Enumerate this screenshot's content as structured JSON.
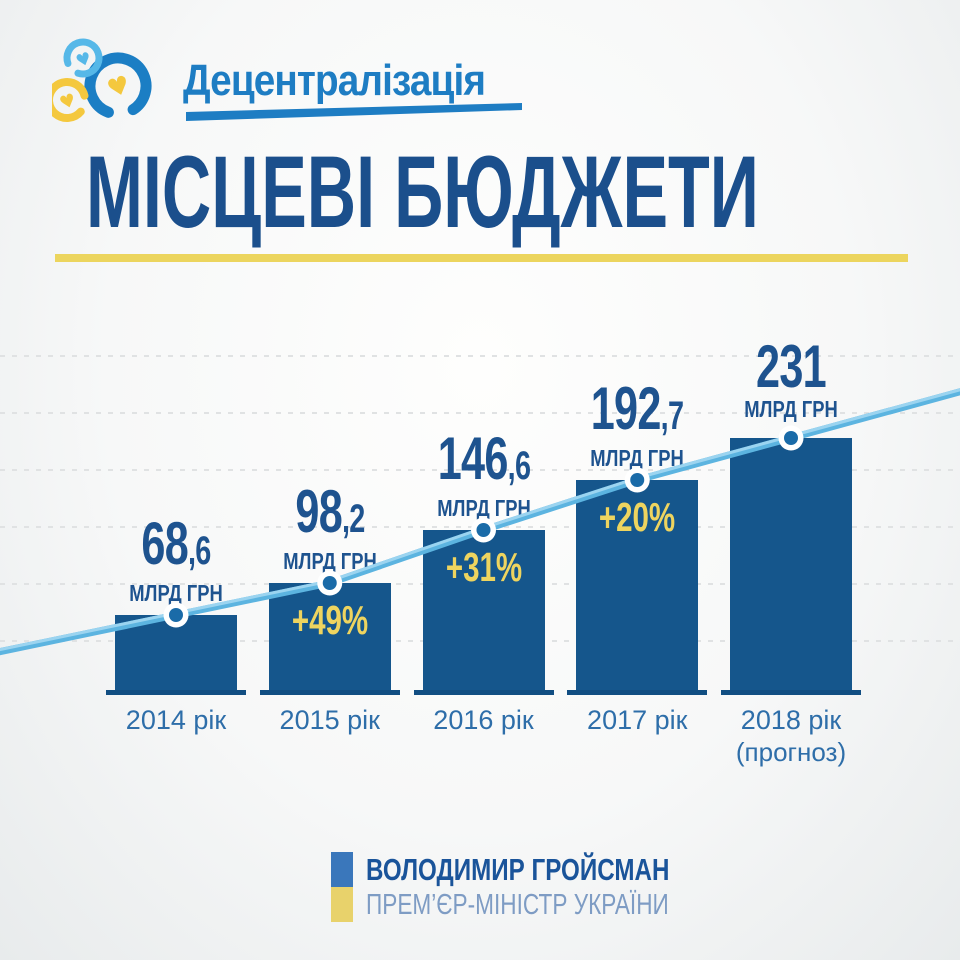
{
  "logo": {
    "brand": "Децентралізація"
  },
  "title": "МІСЦЕВІ БЮДЖЕТИ",
  "footer": {
    "name": "ВОЛОДИМИР ГРОЙСМАН",
    "role": "ПРЕМ’ЄР-МІНІСТР УКРАЇНИ"
  },
  "colors": {
    "bar_blue": "#15568c",
    "baseline_blue": "#114e82",
    "title_blue": "#1b4f8c",
    "value_blue": "#1e538f",
    "year_blue": "#2e6ea9",
    "accent_yellow": "#ecd55e",
    "percent_yellow": "#eed45f",
    "trend_line_blue": "#5cb4e0",
    "trend_line_highlight": "#9bd4f0",
    "dot_blue": "#1a6ba8",
    "logo_blue": "#1e7dc3",
    "logo_light_blue": "#56b8e8",
    "logo_yellow": "#f4c83e",
    "flag_blue": "#3a77bb",
    "flag_yellow": "#e8d26b",
    "footer_role_blue": "#7e9cc4",
    "grid_gray": "#e0e2e3"
  },
  "icons": {
    "logo_mark": "three-brush-circles-with-hearts-icon",
    "flag": "ukraine-flag-icon"
  },
  "chart_data": {
    "type": "bar",
    "title": "МІСЦЕВІ БЮДЖЕТИ",
    "unit": "МЛРД ГРН",
    "categories": [
      {
        "label": "2014 рік",
        "note": ""
      },
      {
        "label": "2015 рік",
        "note": ""
      },
      {
        "label": "2016 рік",
        "note": ""
      },
      {
        "label": "2017 рік",
        "note": ""
      },
      {
        "label": "2018 рік",
        "note": "(прогноз)"
      }
    ],
    "values": [
      68.6,
      98.2,
      146.6,
      192.7,
      231
    ],
    "value_labels": [
      "68,6",
      "98,2",
      "146,6",
      "192,7",
      "231"
    ],
    "deltas": [
      "",
      "+49%",
      "+31%",
      "+20%",
      ""
    ],
    "trend_line": {
      "through": "bar tops",
      "style": "light-blue with dots"
    },
    "ylim": [
      0,
      260
    ],
    "grid": "dashed horizontal lines",
    "legend_position": "none"
  }
}
